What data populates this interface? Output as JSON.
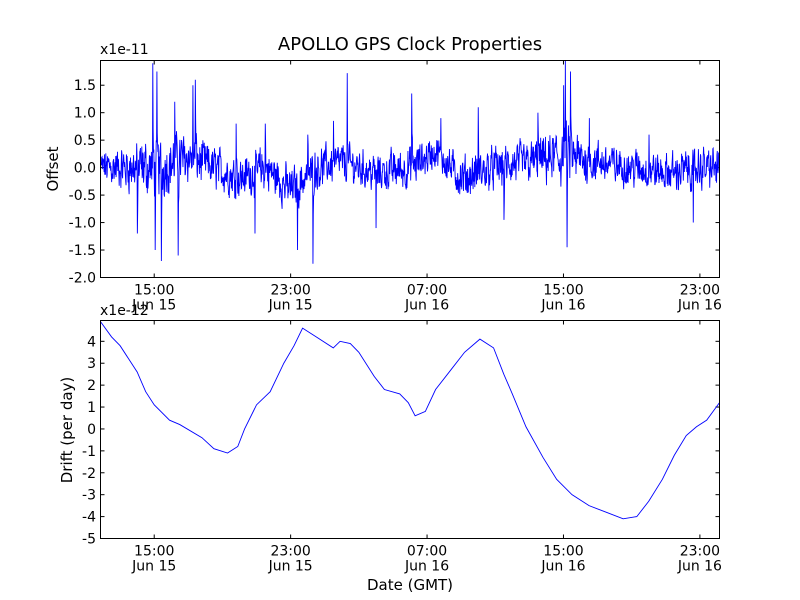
{
  "chart_data": {
    "title": "APOLLO GPS Clock Properties",
    "xlabel": "Date (GMT)",
    "x_ticks": [
      {
        "hour": 15,
        "line1": "15:00",
        "line2": "Jun 15"
      },
      {
        "hour": 23,
        "line1": "23:00",
        "line2": "Jun 15"
      },
      {
        "hour": 31,
        "line1": "07:00",
        "line2": "Jun 16"
      },
      {
        "hour": 39,
        "line1": "15:00",
        "line2": "Jun 16"
      },
      {
        "hour": 47,
        "line1": "23:00",
        "line2": "Jun 16"
      }
    ],
    "xlim": [
      11.85,
      48.15
    ],
    "panels": [
      {
        "type": "line",
        "ylabel": "Offset",
        "scale_label": "x1e-11",
        "ylim": [
          -2.0,
          1.95
        ],
        "yticks": [
          "-2.0",
          "-1.5",
          "-1.0",
          "-0.5",
          "0.0",
          "0.5",
          "1.0",
          "1.5"
        ],
        "ytick_values": [
          -2.0,
          -1.5,
          -1.0,
          -0.5,
          0.0,
          0.5,
          1.0,
          1.5
        ],
        "color": "#0000ff",
        "noise_envelope": [
          [
            11.9,
            0.0,
            0.45
          ],
          [
            13.0,
            0.0,
            0.5
          ],
          [
            14.5,
            0.0,
            0.7
          ],
          [
            15.3,
            0.0,
            0.7
          ],
          [
            17.0,
            0.2,
            0.6
          ],
          [
            18.5,
            0.0,
            0.5
          ],
          [
            20.0,
            -0.2,
            0.5
          ],
          [
            21.5,
            0.0,
            0.55
          ],
          [
            23.0,
            -0.4,
            0.5
          ],
          [
            24.5,
            0.0,
            0.5
          ],
          [
            26.0,
            0.1,
            0.45
          ],
          [
            28.0,
            -0.1,
            0.45
          ],
          [
            30.0,
            0.0,
            0.5
          ],
          [
            31.5,
            0.3,
            0.4
          ],
          [
            33.0,
            -0.2,
            0.5
          ],
          [
            35.0,
            0.0,
            0.5
          ],
          [
            37.0,
            0.1,
            0.5
          ],
          [
            39.0,
            0.2,
            0.7
          ],
          [
            41.0,
            0.1,
            0.5
          ],
          [
            43.0,
            0.0,
            0.45
          ],
          [
            45.0,
            -0.1,
            0.45
          ],
          [
            47.0,
            0.0,
            0.5
          ],
          [
            48.1,
            0.0,
            0.5
          ]
        ],
        "spikes": [
          [
            14.0,
            -1.2
          ],
          [
            14.9,
            1.9
          ],
          [
            15.05,
            -1.5
          ],
          [
            15.15,
            1.75
          ],
          [
            15.4,
            -1.7
          ],
          [
            16.2,
            1.2
          ],
          [
            16.4,
            -1.6
          ],
          [
            17.25,
            1.5
          ],
          [
            17.4,
            1.6
          ],
          [
            19.8,
            0.8
          ],
          [
            20.9,
            -1.2
          ],
          [
            21.5,
            0.8
          ],
          [
            23.4,
            -1.5
          ],
          [
            24.0,
            0.6
          ],
          [
            24.3,
            -1.75
          ],
          [
            25.5,
            0.85
          ],
          [
            26.3,
            1.72
          ],
          [
            28.0,
            -1.1
          ],
          [
            30.1,
            1.35
          ],
          [
            31.8,
            0.9
          ],
          [
            34.0,
            1.1
          ],
          [
            35.5,
            -0.95
          ],
          [
            37.5,
            1.0
          ],
          [
            39.0,
            1.5
          ],
          [
            39.1,
            2.0
          ],
          [
            39.2,
            -1.45
          ],
          [
            39.4,
            1.75
          ],
          [
            40.5,
            0.9
          ],
          [
            44.0,
            0.6
          ],
          [
            46.6,
            -1.0
          ]
        ]
      },
      {
        "type": "line",
        "ylabel": "Drift (per day)",
        "scale_label": "x1e-12",
        "ylim": [
          -5,
          4.95
        ],
        "yticks": [
          "-5",
          "-4",
          "-3",
          "-2",
          "-1",
          "0",
          "1",
          "2",
          "3",
          "4"
        ],
        "ytick_values": [
          -5,
          -4,
          -3,
          -2,
          -1,
          0,
          1,
          2,
          3,
          4
        ],
        "color": "#0000ff",
        "x": [
          11.85,
          12.5,
          13.0,
          14.0,
          14.5,
          15.0,
          15.9,
          16.5,
          17.8,
          18.5,
          19.3,
          19.9,
          20.3,
          21.0,
          21.8,
          22.6,
          23.2,
          23.7,
          24.5,
          25.5,
          25.9,
          26.5,
          27.0,
          27.9,
          28.5,
          29.4,
          29.9,
          30.3,
          30.9,
          31.5,
          32.4,
          33.2,
          34.1,
          34.9,
          35.5,
          36.0,
          36.8,
          37.8,
          38.6,
          39.5,
          40.5,
          41.5,
          42.5,
          43.3,
          44.0,
          44.8,
          45.5,
          46.2,
          46.8,
          47.4,
          48.15
        ],
        "values": [
          4.9,
          4.2,
          3.8,
          2.6,
          1.7,
          1.1,
          0.4,
          0.2,
          -0.4,
          -0.9,
          -1.1,
          -0.8,
          0.0,
          1.1,
          1.7,
          3.0,
          3.8,
          4.6,
          4.2,
          3.7,
          4.0,
          3.9,
          3.5,
          2.4,
          1.8,
          1.6,
          1.2,
          0.6,
          0.8,
          1.8,
          2.7,
          3.5,
          4.1,
          3.7,
          2.5,
          1.6,
          0.1,
          -1.3,
          -2.3,
          -3.0,
          -3.5,
          -3.8,
          -4.1,
          -4.0,
          -3.3,
          -2.3,
          -1.2,
          -0.3,
          0.1,
          0.4,
          1.2
        ]
      }
    ]
  }
}
